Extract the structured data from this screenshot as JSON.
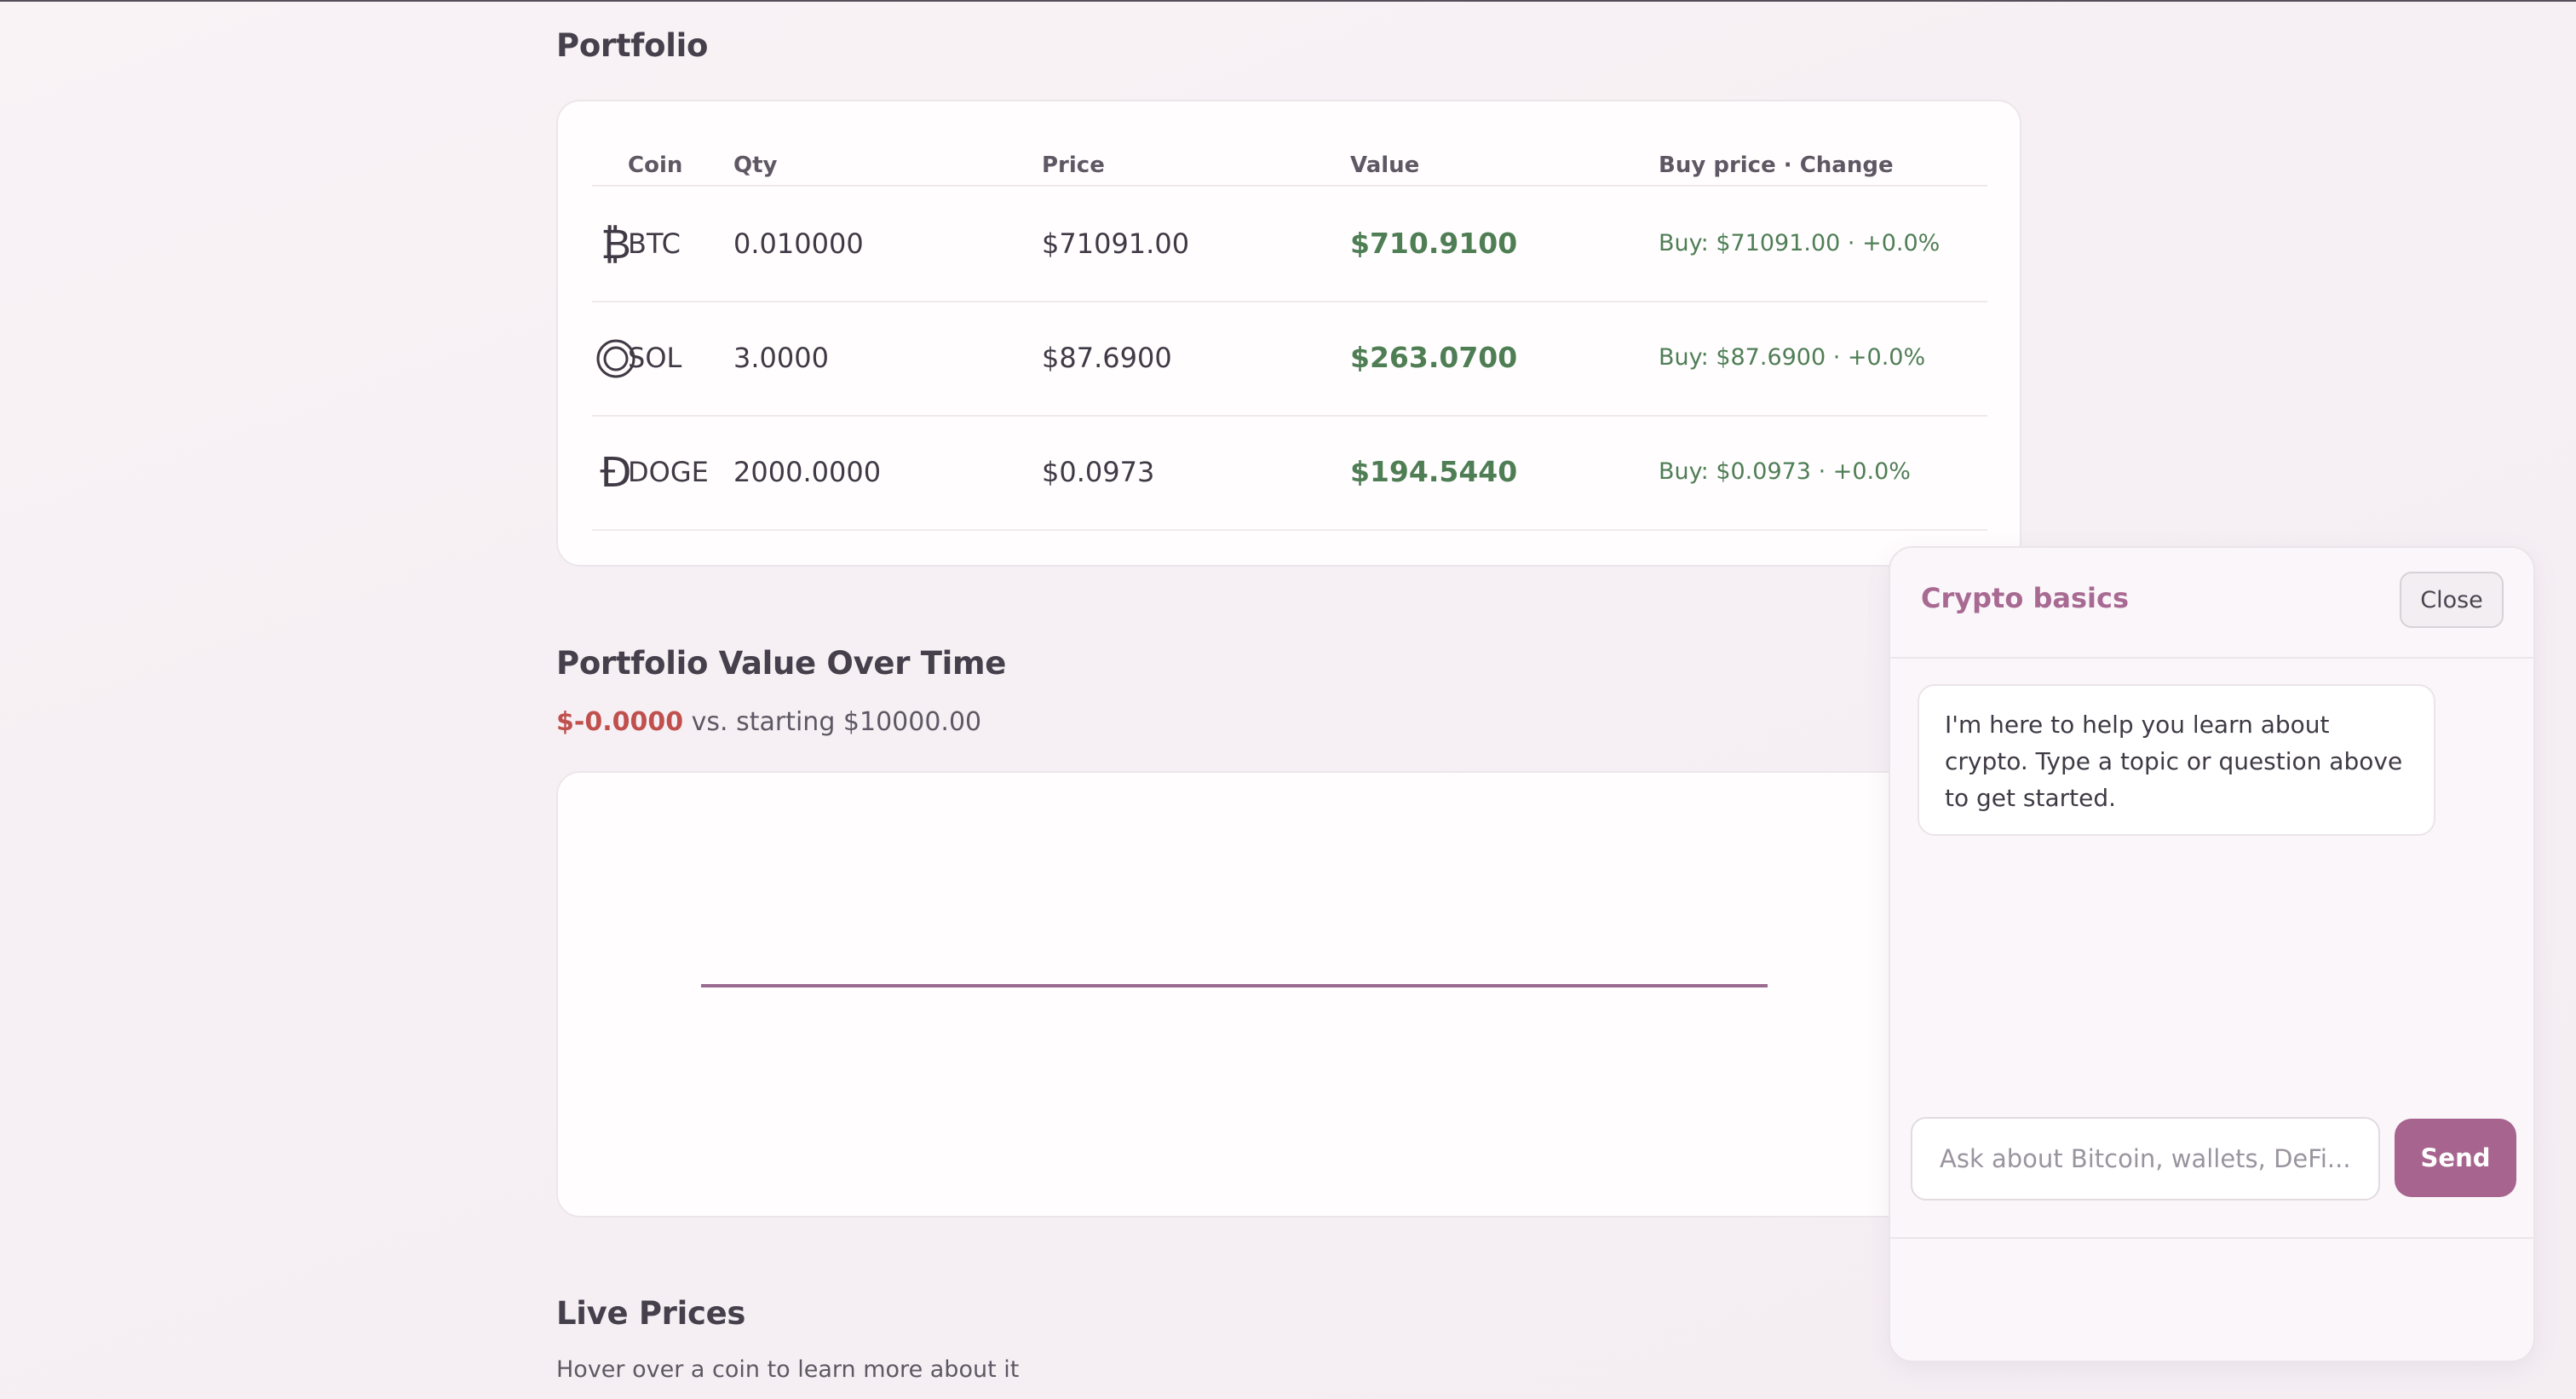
{
  "portfolio": {
    "title": "Portfolio",
    "columns": {
      "coin": "Coin",
      "qty": "Qty",
      "price": "Price",
      "value": "Value",
      "buy_change": "Buy price · Change"
    },
    "rows": [
      {
        "icon": "bitcoin-icon",
        "glyph": "₿",
        "coin": "BTC",
        "qty": "0.010000",
        "price": "$71091.00",
        "value": "$710.9100",
        "buy_change": "Buy: $71091.00 · +0.0%"
      },
      {
        "icon": "solana-icon",
        "glyph": "",
        "coin": "SOL",
        "qty": "3.0000",
        "price": "$87.6900",
        "value": "$263.0700",
        "buy_change": "Buy: $87.6900 · +0.0%"
      },
      {
        "icon": "dogecoin-icon",
        "glyph": "Ð",
        "coin": "DOGE",
        "qty": "2000.0000",
        "price": "$0.0973",
        "value": "$194.5440",
        "buy_change": "Buy: $0.0973 · +0.0%"
      }
    ]
  },
  "value_over_time": {
    "title": "Portfolio Value Over Time",
    "change": "$-0.0000",
    "comparison": "vs. starting $10000.00"
  },
  "chart_data": {
    "type": "line",
    "title": "Portfolio Value Over Time",
    "x": [
      0,
      1
    ],
    "series": [
      {
        "values": [
          10000.0,
          10000.0
        ]
      }
    ],
    "grid": false,
    "line_color": "#9b6a8f"
  },
  "live_prices": {
    "title": "Live Prices",
    "subtitle": "Hover over a coin to learn more about it"
  },
  "chat": {
    "title": "Crypto basics",
    "close_label": "Close",
    "message": "I'm here to help you learn about crypto. Type a topic or question above to get started.",
    "input_placeholder": "Ask about Bitcoin, wallets, DeFi...",
    "input_value": "",
    "send_label": "Send"
  },
  "colors": {
    "accent": "#a7648f",
    "positive": "#4f7e55",
    "negative": "#c0504d"
  }
}
